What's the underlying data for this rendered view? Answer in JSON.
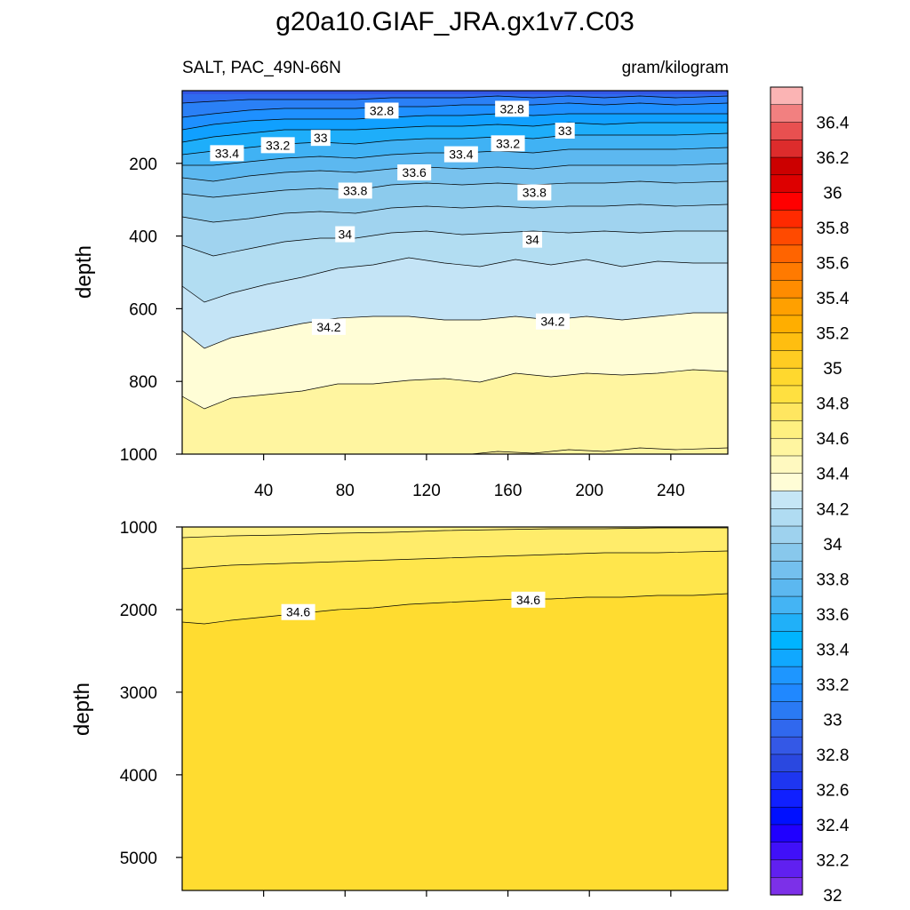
{
  "chart_data": [
    {
      "type": "contour",
      "panel": "upper",
      "title": "g20a10.GIAF_JRA.gx1v7.C03",
      "left_subtitle": "SALT, PAC_49N-66N",
      "right_subtitle": "gram/kilogram",
      "ylabel": "depth",
      "xlabel": "",
      "xlim": [
        0,
        268
      ],
      "ylim": [
        1000,
        0
      ],
      "x_ticks": [
        40,
        80,
        120,
        160,
        200,
        240
      ],
      "y_ticks": [
        200,
        400,
        600,
        800,
        1000
      ],
      "contour_labels": [
        {
          "text": "32.8",
          "x": 98,
          "depth": 55
        },
        {
          "text": "32.8",
          "x": 162,
          "depth": 50
        },
        {
          "text": "33",
          "x": 68,
          "depth": 130
        },
        {
          "text": "33",
          "x": 188,
          "depth": 110
        },
        {
          "text": "33.2",
          "x": 47,
          "depth": 150
        },
        {
          "text": "33.2",
          "x": 160,
          "depth": 145
        },
        {
          "text": "33.4",
          "x": 22,
          "depth": 172
        },
        {
          "text": "33.4",
          "x": 137,
          "depth": 175
        },
        {
          "text": "33.6",
          "x": 114,
          "depth": 225
        },
        {
          "text": "33.8",
          "x": 85,
          "depth": 275
        },
        {
          "text": "33.8",
          "x": 173,
          "depth": 280
        },
        {
          "text": "34",
          "x": 80,
          "depth": 395
        },
        {
          "text": "34",
          "x": 172,
          "depth": 410
        },
        {
          "text": "34.2",
          "x": 72,
          "depth": 650
        },
        {
          "text": "34.2",
          "x": 182,
          "depth": 635
        }
      ],
      "contour_levels_depth_left_to_right": [
        {
          "level": 34.2,
          "depth_at_x0": 680,
          "depth_at_xmax": 610
        },
        {
          "level": 34.4,
          "depth_at_x0": 850,
          "depth_at_xmax": 780
        },
        {
          "level": 34.0,
          "depth_at_x0": 545,
          "depth_at_xmax": 480
        },
        {
          "level": 33.9,
          "depth_at_x0": 400,
          "depth_at_xmax": 370
        },
        {
          "level": 33.8,
          "depth_at_x0": 320,
          "depth_at_xmax": 300
        }
      ]
    },
    {
      "type": "contour",
      "panel": "lower",
      "ylabel": "depth",
      "xlim": [
        0,
        268
      ],
      "ylim": [
        5400,
        1000
      ],
      "y_ticks": [
        1000,
        2000,
        3000,
        4000,
        5000
      ],
      "contour_labels": [
        {
          "text": "34.6",
          "x": 57,
          "depth": 2030
        },
        {
          "text": "34.6",
          "x": 170,
          "depth": 1880
        }
      ],
      "contour_levels_depth_left_to_right": [
        {
          "level": 34.4,
          "depth_at_x0": 1120,
          "depth_at_xmax": 1020
        },
        {
          "level": 34.5,
          "depth_at_x0": 1500,
          "depth_at_xmax": 1300
        },
        {
          "level": 34.6,
          "depth_at_x0": 2150,
          "depth_at_xmax": 1800
        }
      ]
    }
  ],
  "colorbar": {
    "labels": [
      "36.4",
      "36.2",
      "36",
      "35.8",
      "35.6",
      "35.4",
      "35.2",
      "35",
      "34.8",
      "34.6",
      "34.4",
      "34.2",
      "34",
      "33.8",
      "33.6",
      "33.4",
      "33.2",
      "33",
      "32.8",
      "32.6",
      "32.4",
      "32.2",
      "32"
    ],
    "colors": [
      "#fbb4b4",
      "#f28080",
      "#e85050",
      "#dd2c2c",
      "#cc0000",
      "#dd0000",
      "#ff0000",
      "#ff2a00",
      "#ff4a00",
      "#ff6400",
      "#ff7a00",
      "#ff8c00",
      "#ffa000",
      "#ffae00",
      "#ffbe10",
      "#ffcc22",
      "#ffd82e",
      "#ffe040",
      "#ffe660",
      "#fff080",
      "#fff5a0",
      "#fff9c0",
      "#fffdd6",
      "#c6e6f6",
      "#b0dcf2",
      "#9ed2ee",
      "#88c8ec",
      "#74c0ee",
      "#5cb8f0",
      "#44b4f4",
      "#20b0f8",
      "#00b4ff",
      "#10a8ff",
      "#1e96ff",
      "#2088ff",
      "#2a7af4",
      "#3068ee",
      "#3458e6",
      "#2a48e0",
      "#1e36f0",
      "#1020ff",
      "#0010ff",
      "#2000ff",
      "#4010f8",
      "#6020f0",
      "#7c30e8"
    ]
  }
}
